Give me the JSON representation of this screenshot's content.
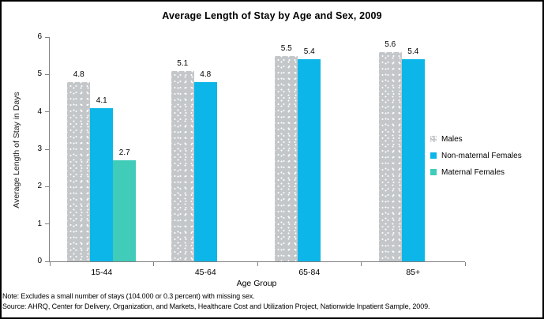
{
  "chart_data": {
    "type": "bar",
    "title": "Average Length of Stay by Age and Sex, 2009",
    "xlabel": "Age Group",
    "ylabel": "Average Length of Stay in Days",
    "categories": [
      "15-44",
      "45-64",
      "65-84",
      "85+"
    ],
    "series": [
      {
        "name": "Males",
        "color": "#c4c7c9",
        "pattern": "dots",
        "values": [
          4.8,
          5.1,
          5.5,
          5.6
        ]
      },
      {
        "name": "Non-maternal Females",
        "color": "#0db6e8",
        "pattern": "solid",
        "values": [
          4.1,
          4.8,
          5.4,
          5.4
        ]
      },
      {
        "name": "Maternal Females",
        "color": "#41cbb9",
        "pattern": "solid",
        "values": [
          2.7,
          null,
          null,
          null
        ]
      }
    ],
    "ylim": [
      0,
      6
    ],
    "yticks": [
      0,
      1,
      2,
      3,
      4,
      5,
      6
    ],
    "grid": false,
    "legend_position": "right",
    "value_labels": true,
    "axis_color": "#808080"
  },
  "notes": {
    "note": "Note: Excludes a small number of stays (104.000 or 0.3 percent) with missing sex.",
    "source": "Source: AHRQ, Center for Delivery, Organization, and Markets, Healthcare Cost and Utilization Project, Nationwide Inpatient Sample, 2009."
  }
}
